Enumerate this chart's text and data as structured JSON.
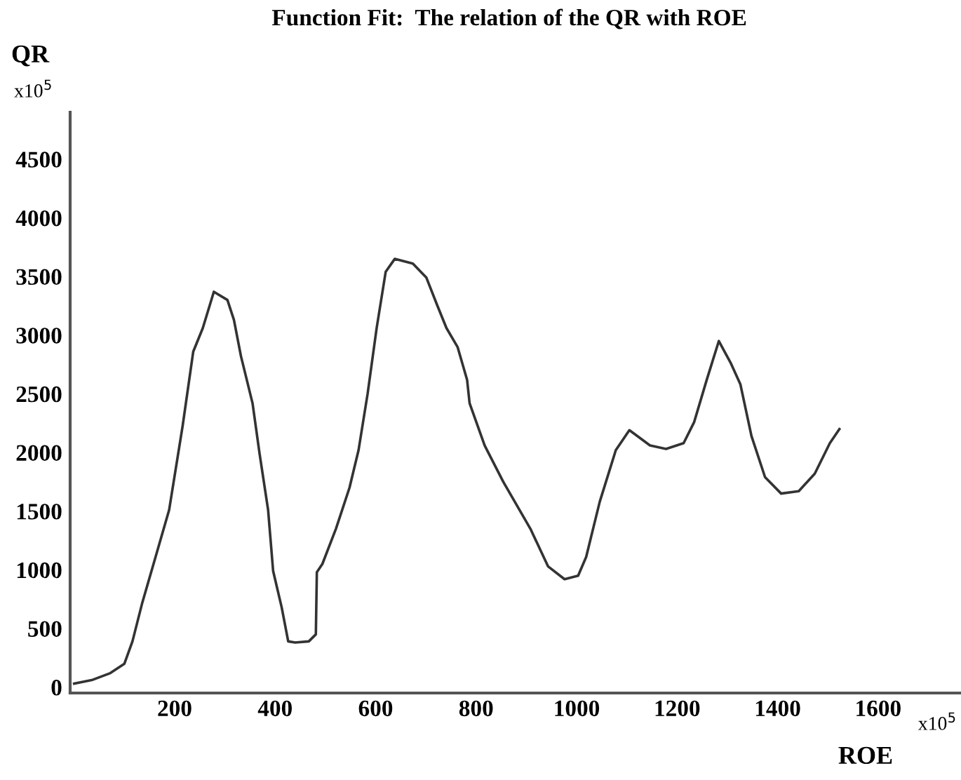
{
  "chart_data": {
    "type": "line",
    "title": "Function Fit:  The relation of the QR with ROE",
    "xlabel": "ROE",
    "ylabel": "QR",
    "annotations": [
      "x10$^{5}$",
      "x10$^{5}$"
    ],
    "series": [
      {
        "color": "#333333",
        "x": [
          0,
          35,
          72,
          100,
          116,
          135,
          162,
          189,
          216,
          237,
          256,
          278,
          305,
          318,
          332,
          355,
          369,
          386,
          396,
          413,
          426,
          440,
          467,
          481,
          483,
          494,
          521,
          548,
          566,
          584,
          602,
          620,
          638,
          674,
          701,
          723,
          741,
          763,
          782,
          787,
          817,
          854,
          908,
          943,
          976,
          1003,
          1019,
          1046,
          1078,
          1105,
          1146,
          1178,
          1213,
          1234,
          1259,
          1283,
          1307,
          1326,
          1348,
          1375,
          1407,
          1442,
          1474,
          1504,
          1523
        ],
        "values": [
          30,
          60,
          120,
          200,
          390,
          710,
          1110,
          1510,
          2230,
          2860,
          3060,
          3370,
          3300,
          3130,
          2820,
          2420,
          1990,
          1510,
          990,
          680,
          390,
          380,
          390,
          450,
          980,
          1050,
          1350,
          1700,
          2020,
          2500,
          3060,
          3540,
          3650,
          3610,
          3490,
          3250,
          3060,
          2900,
          2620,
          2420,
          2060,
          1750,
          1350,
          1030,
          920,
          950,
          1110,
          1580,
          2020,
          2190,
          2060,
          2030,
          2080,
          2260,
          2620,
          2950,
          2760,
          2580,
          2140,
          1790,
          1650,
          1670,
          1820,
          2080,
          2200
        ]
      }
    ],
    "xlim": [
      -8,
      1765
    ],
    "ylim": [
      -50,
      4900
    ],
    "xticks": [
      200,
      400,
      600,
      800,
      1000,
      1200,
      1400,
      1600
    ],
    "yticks": [
      0,
      500,
      1000,
      1500,
      2000,
      2500,
      3000,
      3500,
      4000,
      4500
    ],
    "grid": false,
    "legend": false,
    "marker": "none",
    "line_style": "solid"
  }
}
